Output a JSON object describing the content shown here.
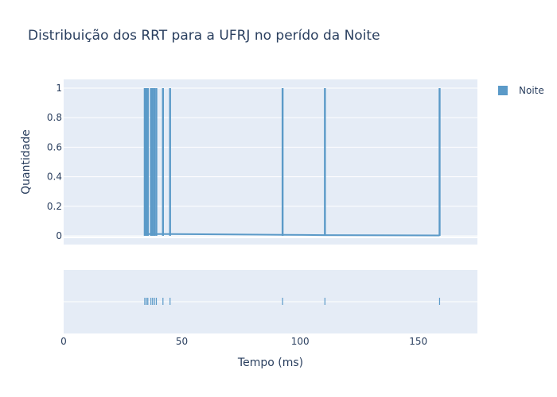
{
  "chart_data": {
    "type": "histogram",
    "title": "Distribuição dos RRT para a UFRJ no perído da Noite",
    "xlabel": "Tempo (ms)",
    "ylabel": "Quantidade",
    "xlim": [
      0,
      175
    ],
    "ylim": [
      0,
      1
    ],
    "x_ticks": [
      "0",
      "50",
      "100",
      "150"
    ],
    "y_ticks": [
      "0",
      "0.2",
      "0.4",
      "0.6",
      "0.8",
      "1"
    ],
    "grid": true,
    "legend_position": "top-right",
    "series": [
      {
        "name": "Noite",
        "color": "#5b9ac8",
        "x": [
          34.3,
          35.0,
          35.6,
          36.9,
          37.6,
          38.4,
          39.2,
          42.0,
          45.0,
          92.6,
          110.5,
          159.0
        ],
        "y": [
          1,
          1,
          1,
          1,
          1,
          1,
          1,
          1,
          1,
          1,
          1,
          1
        ],
        "density_curve": [
          [
            34,
            0.012
          ],
          [
            45,
            0.012
          ],
          [
            92.6,
            0.007
          ],
          [
            110.5,
            0.005
          ],
          [
            159,
            0.003
          ]
        ]
      }
    ],
    "rug_panel": true
  }
}
